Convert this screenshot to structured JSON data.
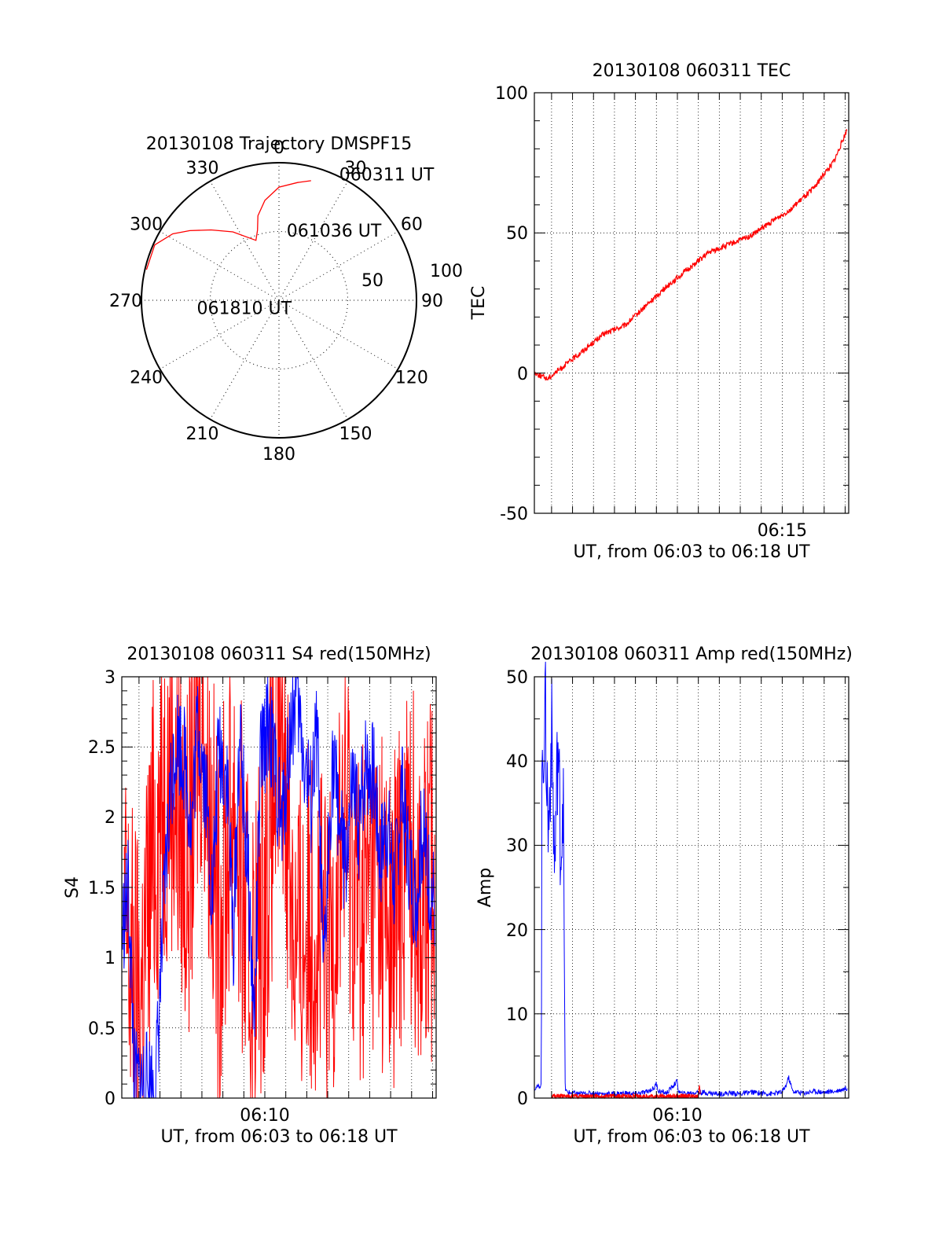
{
  "colors": {
    "red": "#ff0000",
    "blue": "#0000ff",
    "black": "#000000"
  },
  "chart_data": [
    {
      "type": "polar",
      "title": "20130108 Trajectory DMSPF15",
      "azimuth_labels": [
        "0",
        "30",
        "60",
        "90",
        "120",
        "150",
        "180",
        "210",
        "240",
        "270",
        "300",
        "330"
      ],
      "radius_labels": [
        "50",
        "100"
      ],
      "trajectory": {
        "points": [
          {
            "az": 15,
            "zen": 81
          },
          {
            "az": 9,
            "zen": 78
          },
          {
            "az": 0,
            "zen": 74
          },
          {
            "az": -8,
            "zen": 66
          },
          {
            "az": -14,
            "zen": 57
          },
          {
            "az": -17,
            "zen": 48
          },
          {
            "az": -21,
            "zen": 42
          },
          {
            "az": -34,
            "zen": 54
          },
          {
            "az": -44,
            "zen": 64
          },
          {
            "az": -52,
            "zen": 74
          },
          {
            "az": -58,
            "zen": 82
          },
          {
            "az": -66,
            "zen": 89
          },
          {
            "az": -77,
            "zen": 89
          }
        ],
        "labels": [
          {
            "text": "060311 UT",
            "az": 25,
            "zen": 91
          },
          {
            "text": "061036 UT",
            "az": 5,
            "zen": 46
          },
          {
            "text": "061810 UT",
            "az": -95,
            "zen": 55
          }
        ]
      }
    },
    {
      "type": "line",
      "title": "20130108 060311 TEC",
      "xlabel": "UT, from 06:03 to 06:18 UT",
      "ylabel": "TEC",
      "xlim": [
        363.18,
        378.17
      ],
      "ylim": [
        -50,
        100
      ],
      "yticks": [
        "100",
        "50",
        "0",
        "-50"
      ],
      "xtick_labels": [
        {
          "x": 375,
          "label": "06:15"
        }
      ],
      "series": [
        {
          "color": "red",
          "x": [
            363.2,
            363.8,
            364.5,
            365.5,
            366.5,
            367.5,
            368.5,
            369.5,
            370.5,
            371.5,
            372.5,
            373.5,
            374.5,
            375.5,
            376.5,
            377.5,
            378.1
          ],
          "y": [
            0,
            -2,
            2,
            8,
            14,
            17,
            24,
            31,
            37,
            43,
            46,
            49,
            54,
            59,
            66,
            76,
            87
          ]
        }
      ]
    },
    {
      "type": "line",
      "title": "20130108 060311 S4 red(150MHz)",
      "xlabel": "UT, from 06:03 to 06:18 UT",
      "ylabel": "S4",
      "xlim": [
        363.18,
        378.17
      ],
      "ylim": [
        0,
        3
      ],
      "yticks": [
        "3",
        "2.5",
        "2",
        "1.5",
        "1",
        "0.5",
        "0"
      ],
      "xtick_labels": [
        {
          "x": 370,
          "label": "06:10"
        }
      ],
      "series": [
        {
          "color": "red",
          "x": [
            363.3,
            364.0,
            364.7,
            365.5,
            366.3,
            367.0,
            367.8,
            368.5,
            369.3,
            370.0,
            370.8,
            371.5,
            372.3,
            373.0,
            373.8,
            374.5,
            375.3,
            376.0,
            376.8,
            377.5,
            378.1
          ],
          "y": [
            1.2,
            0.6,
            1.8,
            2.4,
            1.6,
            2.9,
            1.2,
            2.2,
            0.8,
            1.5,
            2.8,
            1.0,
            1.4,
            0.9,
            2.1,
            1.3,
            1.7,
            1.1,
            1.9,
            1.4,
            1.6
          ]
        },
        {
          "color": "blue",
          "x": [
            363.2,
            363.5,
            363.8,
            364.1,
            364.5,
            364.8,
            365.2,
            365.5,
            365.8,
            366.2,
            366.5,
            366.8,
            367.2,
            367.5,
            367.8,
            368.2,
            368.5,
            368.8,
            369.2,
            369.5,
            369.8,
            370.2,
            370.5,
            370.8,
            371.2,
            371.5,
            371.8,
            372.2,
            372.5,
            372.8,
            373.2,
            373.5,
            373.8,
            374.2,
            374.5,
            374.8,
            375.2,
            375.5,
            375.8,
            376.2,
            376.5,
            376.8,
            377.2,
            377.5,
            377.8,
            378.1
          ],
          "y": [
            1.2,
            1.5,
            0.1,
            0.1,
            0.1,
            0.1,
            1.4,
            2.2,
            2.6,
            2.4,
            1.9,
            2.7,
            2.2,
            1.4,
            2.5,
            2.3,
            1.1,
            2.6,
            1.6,
            0.5,
            2.4,
            2.7,
            2.3,
            1.9,
            2.6,
            2.9,
            2.5,
            2.1,
            2.6,
            0.8,
            2.4,
            2.1,
            1.6,
            2.2,
            1.9,
            2.4,
            2.3,
            1.7,
            2.0,
            1.5,
            2.2,
            1.8,
            1.4,
            1.9,
            1.6,
            1.4
          ]
        }
      ]
    },
    {
      "type": "line",
      "title": "20130108 060311 Amp red(150MHz)",
      "xlabel": "UT, from 06:03 to 06:18 UT",
      "ylabel": "Amp",
      "xlim": [
        363.18,
        378.17
      ],
      "ylim": [
        0,
        50
      ],
      "yticks": [
        "50",
        "40",
        "30",
        "20",
        "10",
        "0"
      ],
      "xtick_labels": [
        {
          "x": 370,
          "label": "06:10"
        }
      ],
      "series": [
        {
          "color": "blue",
          "x": [
            363.2,
            363.5,
            363.55,
            363.7,
            363.85,
            364.0,
            364.15,
            364.3,
            364.45,
            364.55,
            364.65,
            364.75,
            365.0,
            365.5,
            366.0,
            366.5,
            367.0,
            367.5,
            368.0,
            368.5,
            368.9,
            369.0,
            369.1,
            369.5,
            369.8,
            370.0,
            370.05,
            370.2,
            370.5,
            371.0,
            371.5,
            372.0,
            372.5,
            373.0,
            373.5,
            374.0,
            374.5,
            375.0,
            375.2,
            375.3,
            375.5,
            376.0,
            376.5,
            377.0,
            377.5,
            378.1
          ],
          "y": [
            1.2,
            1.5,
            40,
            46,
            31,
            44,
            27,
            42,
            29,
            38,
            1.0,
            0.7,
            0.6,
            0.5,
            0.6,
            0.5,
            0.5,
            0.6,
            0.5,
            0.7,
            1.2,
            1.8,
            0.8,
            0.6,
            1.5,
            2.0,
            0.8,
            0.5,
            0.6,
            0.7,
            0.6,
            0.5,
            0.6,
            0.5,
            0.7,
            0.6,
            0.5,
            0.7,
            1.6,
            2.5,
            0.8,
            0.6,
            0.8,
            0.7,
            0.8,
            1.2
          ]
        },
        {
          "color": "red",
          "x": [
            364.0,
            364.3,
            364.7,
            371.0,
            371.05,
            371.1
          ],
          "y": [
            0.2,
            0.2,
            0.2,
            0.2,
            1.5,
            0.2
          ]
        }
      ]
    }
  ]
}
